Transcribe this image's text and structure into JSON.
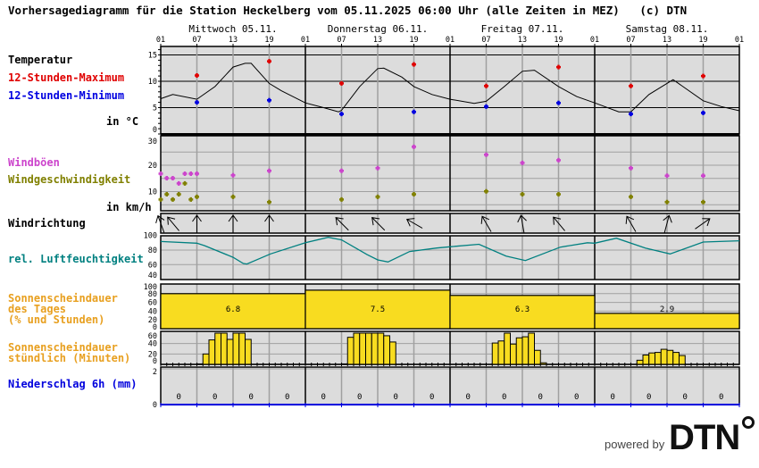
{
  "header": {
    "title": "Vorhersagediagramm für die Station Heckelberg vom 05.11.2025 06:00 Uhr (alle Zeiten in MEZ)   (c) DTN"
  },
  "labels": {
    "temperature": "Temperatur",
    "max": "12-Stunden-Maximum",
    "min": "12-Stunden-Minimum",
    "temp_unit": "in °C",
    "gusts": "Windböen",
    "wind_speed": "Windgeschwindigkeit",
    "wind_unit": "in km/h",
    "wind_dir": "Windrichtung",
    "humidity": "rel. Luftfeuchtigkeit",
    "sun_day": "Sonnenscheindauer\ndes Tages\n(% und Stunden)",
    "sun_hour": "Sonnenscheindauer\nstündlich (Minuten)",
    "precip": "Niederschlag 6h (mm)"
  },
  "colors": {
    "max": "#e00000",
    "min": "#0000e0",
    "gusts": "#cc44cc",
    "wind_speed": "#808000",
    "humidity": "#008080",
    "sun": "#f8dc20",
    "sun_label": "#e8a020",
    "precip": "#0000dd",
    "panel": "#dcdcdc"
  },
  "footer": {
    "powered_by": "powered by",
    "logo": "DTN"
  },
  "chart_data": {
    "type": "multi-panel meteogram",
    "days": [
      "Mittwoch 05.11.",
      "Donnerstag 06.11.",
      "Freitag 07.11.",
      "Samstag 08.11."
    ],
    "hour_ticks": [
      "01",
      "07",
      "13",
      "19",
      "01",
      "07",
      "13",
      "19",
      "01",
      "07",
      "13",
      "19",
      "01",
      "07",
      "13",
      "19",
      "01"
    ],
    "x_unit": "hours since 05.11. 01:00",
    "temperature": {
      "yticks": [
        "15",
        "10",
        "5",
        "0"
      ],
      "ylim": [
        0,
        16.7
      ],
      "curve": [
        [
          0,
          6.7
        ],
        [
          2,
          7.5
        ],
        [
          6,
          6.6
        ],
        [
          9,
          9.0
        ],
        [
          12,
          12.7
        ],
        [
          14,
          13.4
        ],
        [
          15,
          13.4
        ],
        [
          18,
          9.6
        ],
        [
          20,
          8.2
        ],
        [
          24,
          5.9
        ],
        [
          27,
          5.0
        ],
        [
          29.5,
          4.2
        ],
        [
          30,
          4.5
        ],
        [
          33,
          9.0
        ],
        [
          36,
          12.4
        ],
        [
          37,
          12.5
        ],
        [
          40,
          10.8
        ],
        [
          42,
          9.0
        ],
        [
          45,
          7.5
        ],
        [
          48,
          6.6
        ],
        [
          52,
          5.8
        ],
        [
          54,
          6.2
        ],
        [
          57,
          9.0
        ],
        [
          60,
          11.9
        ],
        [
          62,
          12.1
        ],
        [
          66,
          9.0
        ],
        [
          69,
          7.1
        ],
        [
          72,
          5.9
        ],
        [
          76,
          4.2
        ],
        [
          78,
          4.2
        ],
        [
          81,
          7.5
        ],
        [
          85,
          10.3
        ],
        [
          90,
          6.3
        ],
        [
          93,
          5.2
        ],
        [
          96,
          4.4
        ]
      ],
      "max": [
        [
          6,
          11.1
        ],
        [
          18,
          13.8
        ],
        [
          30,
          9.6
        ],
        [
          42,
          13.2
        ],
        [
          54,
          9.1
        ],
        [
          66,
          12.7
        ],
        [
          78,
          9.1
        ],
        [
          90,
          11.0
        ]
      ],
      "min": [
        [
          6,
          6.0
        ],
        [
          18,
          6.4
        ],
        [
          30,
          3.8
        ],
        [
          42,
          4.2
        ],
        [
          54,
          5.2
        ],
        [
          66,
          5.9
        ],
        [
          78,
          3.8
        ],
        [
          90,
          4.0
        ]
      ]
    },
    "wind": {
      "yticks": [
        "30",
        "20",
        "10"
      ],
      "gusts": [
        [
          0,
          16.8
        ],
        [
          1,
          15.1
        ],
        [
          2,
          15.1
        ],
        [
          3,
          13.1
        ],
        [
          4,
          16.8
        ],
        [
          5,
          16.8
        ],
        [
          6,
          16.8
        ],
        [
          12,
          16.2
        ],
        [
          18,
          17.9
        ],
        [
          30,
          17.9
        ],
        [
          36,
          18.9
        ],
        [
          42,
          27.0
        ],
        [
          54,
          24.0
        ],
        [
          60,
          20.9
        ],
        [
          66,
          21.9
        ],
        [
          78,
          18.9
        ],
        [
          84,
          16.0
        ],
        [
          90,
          16.0
        ]
      ],
      "speed": [
        [
          0,
          7.0
        ],
        [
          1,
          9.0
        ],
        [
          2,
          7.0
        ],
        [
          3,
          9.0
        ],
        [
          4,
          13.1
        ],
        [
          5,
          7.0
        ],
        [
          6,
          8.0
        ],
        [
          12,
          8.0
        ],
        [
          18,
          6.0
        ],
        [
          30,
          7.0
        ],
        [
          36,
          8.0
        ],
        [
          42,
          9.0
        ],
        [
          54,
          10.1
        ],
        [
          60,
          9.0
        ],
        [
          66,
          9.0
        ],
        [
          78,
          8.0
        ],
        [
          84,
          6.0
        ],
        [
          90,
          6.0
        ]
      ]
    },
    "wind_direction_arrow_bearing_deg": [
      [
        0,
        -20
      ],
      [
        2,
        -40
      ],
      [
        6,
        0
      ],
      [
        12,
        0
      ],
      [
        18,
        0
      ],
      [
        30,
        -45
      ],
      [
        36,
        -45
      ],
      [
        42,
        -60
      ],
      [
        54,
        -30
      ],
      [
        60,
        -10
      ],
      [
        66,
        -40
      ],
      [
        78,
        -30
      ],
      [
        84,
        15
      ],
      [
        90,
        55
      ]
    ],
    "humidity": {
      "yticks": [
        "100",
        "80",
        "60",
        "40"
      ],
      "curve": [
        [
          0,
          91.8
        ],
        [
          6,
          89.4
        ],
        [
          7.3,
          86
        ],
        [
          12,
          70
        ],
        [
          13.7,
          61.6
        ],
        [
          14.3,
          60.8
        ],
        [
          18.2,
          74.7
        ],
        [
          24,
          90
        ],
        [
          27.8,
          97.5
        ],
        [
          30,
          94
        ],
        [
          34.2,
          74
        ],
        [
          36,
          66.5
        ],
        [
          37.7,
          63.7
        ],
        [
          41.3,
          78
        ],
        [
          45.8,
          82.8
        ],
        [
          48,
          84.5
        ],
        [
          52.8,
          88
        ],
        [
          57.3,
          71.8
        ],
        [
          60.5,
          65.7
        ],
        [
          66.3,
          84
        ],
        [
          70.8,
          90
        ],
        [
          72,
          89.4
        ],
        [
          75.6,
          96.3
        ],
        [
          80.4,
          82.8
        ],
        [
          84.5,
          74.7
        ],
        [
          90,
          91
        ],
        [
          96,
          92.7
        ]
      ]
    },
    "sunshine_day": {
      "yticks": [
        "100",
        "80",
        "60",
        "40",
        "20",
        "0"
      ],
      "percent": [
        80,
        88,
        76,
        35
      ],
      "hours": [
        "6.8",
        "7.5",
        "6.3",
        "2.9"
      ]
    },
    "sunshine_hourly": {
      "yticks": [
        "60",
        "40",
        "20",
        "0"
      ],
      "minutes": [
        [
          6,
          1
        ],
        [
          7,
          20
        ],
        [
          8,
          47
        ],
        [
          9,
          60
        ],
        [
          10,
          60
        ],
        [
          11,
          48
        ],
        [
          12,
          60
        ],
        [
          13,
          60
        ],
        [
          14,
          48
        ],
        [
          30,
          1
        ],
        [
          31,
          52
        ],
        [
          32,
          60
        ],
        [
          33,
          60
        ],
        [
          34,
          60
        ],
        [
          35,
          60
        ],
        [
          36,
          60
        ],
        [
          37,
          55
        ],
        [
          38,
          43
        ],
        [
          55,
          41
        ],
        [
          56,
          45
        ],
        [
          57,
          60
        ],
        [
          58,
          39
        ],
        [
          59,
          51
        ],
        [
          60,
          53
        ],
        [
          61,
          60
        ],
        [
          62,
          27
        ],
        [
          63,
          3
        ],
        [
          79,
          8
        ],
        [
          80,
          18
        ],
        [
          81,
          22
        ],
        [
          82,
          23
        ],
        [
          83,
          29
        ],
        [
          84,
          27
        ],
        [
          85,
          23
        ],
        [
          86,
          17
        ]
      ]
    },
    "precipitation_6h": {
      "yticks": [
        "2",
        "0"
      ],
      "values": [
        "0",
        "0",
        "0",
        "0",
        "0",
        "0",
        "0",
        "0",
        "0",
        "0",
        "0",
        "0",
        "0",
        "0",
        "0",
        "0"
      ]
    }
  }
}
